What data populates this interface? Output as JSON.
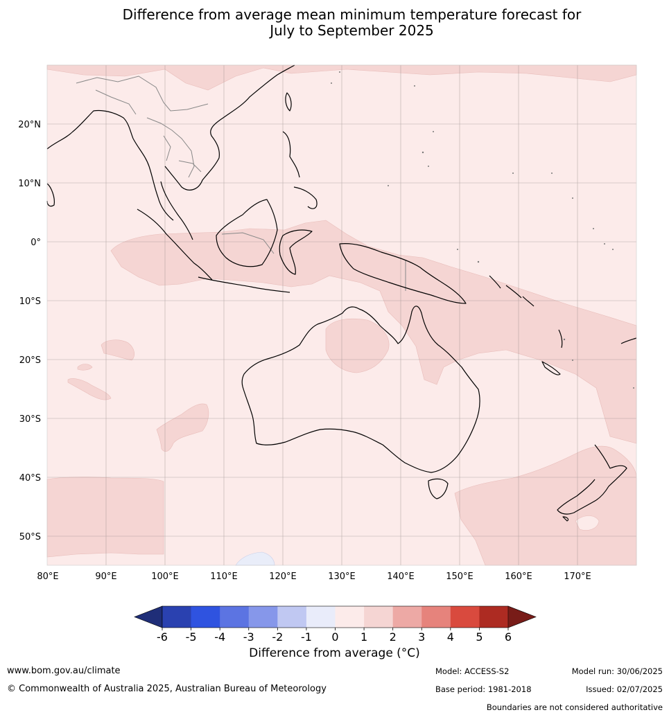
{
  "title": {
    "line1": "Difference from average mean minimum temperature forecast for",
    "line2": "July to September 2025"
  },
  "map": {
    "lon_range": [
      80,
      180
    ],
    "lat_range": [
      -55,
      30
    ],
    "lon_ticks": [
      "80°E",
      "90°E",
      "100°E",
      "110°E",
      "120°E",
      "130°E",
      "140°E",
      "150°E",
      "160°E",
      "170°E"
    ],
    "lat_ticks": [
      "20°N",
      "10°N",
      "0°",
      "10°S",
      "20°S",
      "30°S",
      "40°S",
      "50°S"
    ],
    "gridlines": true,
    "background_category": "0 to 1",
    "colors": {
      "background": "#fcebea",
      "warm_patch": "#f5d5d3",
      "cool_patch": "#e9edf9",
      "coast": "#000000",
      "borders": "#888888",
      "grid": "#9a8f8f"
    }
  },
  "colorbar": {
    "ticks": [
      "-6",
      "-5",
      "-4",
      "-3",
      "-2",
      "-1",
      "0",
      "1",
      "2",
      "3",
      "4",
      "5",
      "6"
    ],
    "colors": [
      "#1f2e78",
      "#2a41b0",
      "#2f53e0",
      "#5c74e2",
      "#8697ea",
      "#c0c8f2",
      "#e9ecfa",
      "#fcebea",
      "#f5d5d3",
      "#eda9a5",
      "#e6837c",
      "#d94a3e",
      "#ad2b22",
      "#781c18"
    ],
    "label": "Difference from average (°C)"
  },
  "footer": {
    "website": "www.bom.gov.au/climate",
    "copyright": "© Commonwealth of Australia 2025, Australian Bureau of Meteorology",
    "model": "Model: ACCESS-S2",
    "base_period": "Base period: 1981-2018",
    "model_run": "Model run: 30/06/2025",
    "issued": "Issued: 02/07/2025",
    "disclaimer": "Boundaries are not considered authoritative"
  }
}
